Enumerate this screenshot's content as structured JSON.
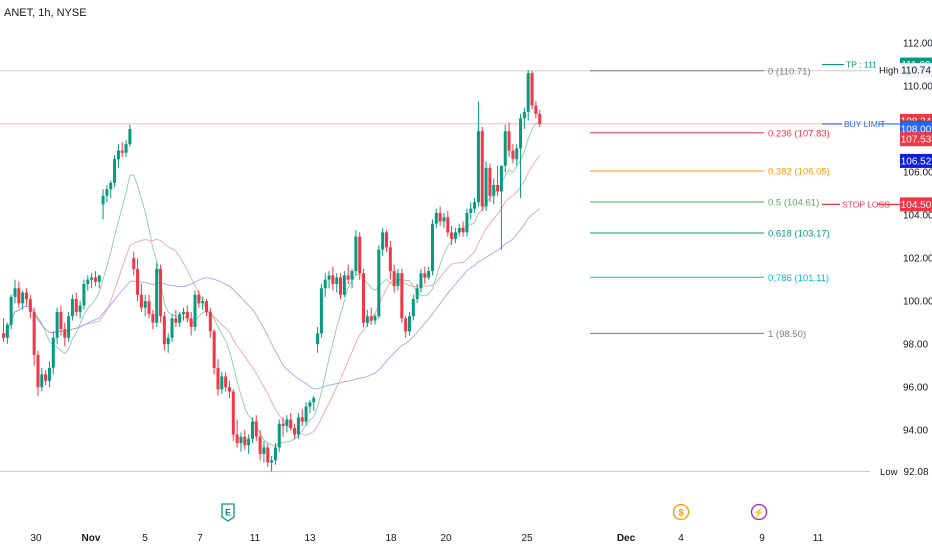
{
  "chart_data": {
    "type": "candlestick",
    "title": "ANET, 1h, NYSE",
    "y_axis": {
      "ticks": [
        "112.00",
        "110.00",
        "108.00",
        "106.00",
        "104.00",
        "102.00",
        "100.00",
        "98.00",
        "96.00",
        "94.00"
      ],
      "range": [
        91.5,
        112.7
      ]
    },
    "x_axis": {
      "ticks": [
        "30",
        "Nov",
        "5",
        "7",
        "11",
        "13",
        "18",
        "20",
        "25",
        "Dec",
        "4",
        "9",
        "11"
      ]
    },
    "fibonacci": [
      {
        "label": "0 (110.71)",
        "value": 110.71
      },
      {
        "label": "0.236 (107.83)",
        "value": 107.83
      },
      {
        "label": "0.382 (106.05)",
        "value": 106.05
      },
      {
        "label": "0.5 (104.61)",
        "value": 104.61
      },
      {
        "label": "0.618 (103.17)",
        "value": 103.17
      },
      {
        "label": "0.786 (101.11)",
        "value": 101.11
      },
      {
        "label": "1 (98.50)",
        "value": 98.5
      }
    ],
    "annotations": [
      {
        "label": "TP : 111 -",
        "value": 111.0
      },
      {
        "label": "BUY LIMIT",
        "value": 108.24
      },
      {
        "label": "STOP LOSS",
        "value": 104.5
      }
    ],
    "price_labels": [
      {
        "text": "111.00",
        "value": 111.0
      },
      {
        "text": "108.24",
        "value": 108.24
      },
      {
        "text": "108.21",
        "value": 108.21
      },
      {
        "text": "108.00",
        "value": 108.0
      },
      {
        "text": "107.53",
        "value": 107.53
      },
      {
        "text": "106.52",
        "value": 106.52
      },
      {
        "text": "104.50",
        "value": 104.5
      }
    ],
    "high_label": {
      "tag": "High",
      "value_text": "110.74",
      "value": 110.74
    },
    "low_label": {
      "tag": "Low",
      "value_text": "92.08",
      "value": 92.08
    },
    "event_markers": [
      {
        "glyph": "E",
        "position": "8 Nov"
      },
      {
        "glyph": "$",
        "position": "4 Dec"
      },
      {
        "glyph": "⚡",
        "position": "8 Dec"
      }
    ],
    "ohlc_approx": [
      [
        98.5,
        99.2,
        98.1,
        98.3
      ],
      [
        98.3,
        99.0,
        98.0,
        98.9
      ],
      [
        98.9,
        100.3,
        98.7,
        100.2
      ],
      [
        100.2,
        101.0,
        99.9,
        100.6
      ],
      [
        100.6,
        100.9,
        99.7,
        99.9
      ],
      [
        99.9,
        100.5,
        99.6,
        100.4
      ],
      [
        100.4,
        100.6,
        99.8,
        100.1
      ],
      [
        100.1,
        100.3,
        99.2,
        99.5
      ],
      [
        99.5,
        99.7,
        97.0,
        97.5
      ],
      [
        97.5,
        97.7,
        95.6,
        96.0
      ],
      [
        96.0,
        96.9,
        95.8,
        96.6
      ],
      [
        96.6,
        96.8,
        96.1,
        96.3
      ],
      [
        96.3,
        97.2,
        96.0,
        96.9
      ],
      [
        96.9,
        98.6,
        96.6,
        98.3
      ],
      [
        98.3,
        99.7,
        98.0,
        99.5
      ],
      [
        99.5,
        99.8,
        98.4,
        98.7
      ],
      [
        98.7,
        99.0,
        97.9,
        98.3
      ],
      [
        98.3,
        99.5,
        98.1,
        99.3
      ],
      [
        99.3,
        100.3,
        99.1,
        100.1
      ],
      [
        100.1,
        100.4,
        99.3,
        99.5
      ],
      [
        99.5,
        100.0,
        99.2,
        99.8
      ],
      [
        99.8,
        101.0,
        99.6,
        100.8
      ],
      [
        100.8,
        101.2,
        100.5,
        101.0
      ],
      [
        101.0,
        101.3,
        100.6,
        101.1
      ],
      [
        101.1,
        101.4,
        100.7,
        100.9
      ],
      [
        100.9,
        101.2,
        100.6,
        101.2
      ],
      [
        104.5,
        105.2,
        103.8,
        104.9
      ],
      [
        104.9,
        105.4,
        104.6,
        105.2
      ],
      [
        105.2,
        105.6,
        104.8,
        105.5
      ],
      [
        105.5,
        106.8,
        105.3,
        106.6
      ],
      [
        106.6,
        107.3,
        106.2,
        107.0
      ],
      [
        107.0,
        107.4,
        106.7,
        106.9
      ],
      [
        106.9,
        107.5,
        106.7,
        107.3
      ],
      [
        107.3,
        108.2,
        107.2,
        108.0
      ],
      [
        102.0,
        102.3,
        101.2,
        101.5
      ],
      [
        101.5,
        102.0,
        100.0,
        100.3
      ],
      [
        100.3,
        100.8,
        99.5,
        99.7
      ],
      [
        99.7,
        100.3,
        99.3,
        100.0
      ],
      [
        100.0,
        100.3,
        99.2,
        99.4
      ],
      [
        99.4,
        99.6,
        98.7,
        99.0
      ],
      [
        99.0,
        101.8,
        98.8,
        101.5
      ],
      [
        101.5,
        101.7,
        99.0,
        99.3
      ],
      [
        99.3,
        99.5,
        97.7,
        98.0
      ],
      [
        98.0,
        98.5,
        97.6,
        98.3
      ],
      [
        98.3,
        99.4,
        98.1,
        99.2
      ],
      [
        99.2,
        99.6,
        98.8,
        99.0
      ],
      [
        99.0,
        99.5,
        98.8,
        99.4
      ],
      [
        99.4,
        99.7,
        99.1,
        99.5
      ],
      [
        99.5,
        99.8,
        99.0,
        99.2
      ],
      [
        99.2,
        99.5,
        98.4,
        98.8
      ],
      [
        98.8,
        100.5,
        98.6,
        100.3
      ],
      [
        100.3,
        100.5,
        99.7,
        99.9
      ],
      [
        99.9,
        100.2,
        99.6,
        100.0
      ],
      [
        100.0,
        100.1,
        99.3,
        99.5
      ],
      [
        99.5,
        99.7,
        98.3,
        98.6
      ],
      [
        98.6,
        98.7,
        96.6,
        96.9
      ],
      [
        96.9,
        97.3,
        95.6,
        95.9
      ],
      [
        95.9,
        96.7,
        95.7,
        96.5
      ],
      [
        96.5,
        96.7,
        95.8,
        96.0
      ],
      [
        96.0,
        96.3,
        95.5,
        95.8
      ],
      [
        95.8,
        95.9,
        93.5,
        93.8
      ],
      [
        93.8,
        94.5,
        93.2,
        93.4
      ],
      [
        93.4,
        93.9,
        93.0,
        93.7
      ],
      [
        93.7,
        94.0,
        93.1,
        93.3
      ],
      [
        93.3,
        93.8,
        92.9,
        93.6
      ],
      [
        93.6,
        94.6,
        93.4,
        94.4
      ],
      [
        94.4,
        94.7,
        93.5,
        93.7
      ],
      [
        93.7,
        94.0,
        92.6,
        92.9
      ],
      [
        92.9,
        93.5,
        92.5,
        93.2
      ],
      [
        93.2,
        93.4,
        92.3,
        92.5
      ],
      [
        92.5,
        92.8,
        92.08,
        92.6
      ],
      [
        92.6,
        93.4,
        92.4,
        93.2
      ],
      [
        93.2,
        94.5,
        93.0,
        94.3
      ],
      [
        94.3,
        94.6,
        93.7,
        94.2
      ],
      [
        94.2,
        94.7,
        93.9,
        94.5
      ],
      [
        94.5,
        94.8,
        94.0,
        94.1
      ],
      [
        94.1,
        94.3,
        93.6,
        93.8
      ],
      [
        93.8,
        94.8,
        93.6,
        94.6
      ],
      [
        94.6,
        95.0,
        94.2,
        94.4
      ],
      [
        94.4,
        95.3,
        94.2,
        95.1
      ],
      [
        95.1,
        95.4,
        94.8,
        95.3
      ],
      [
        95.3,
        95.6,
        94.9,
        95.5
      ],
      [
        98.0,
        98.8,
        97.6,
        98.5
      ],
      [
        98.5,
        100.8,
        98.3,
        100.6
      ],
      [
        100.6,
        101.3,
        100.2,
        101.0
      ],
      [
        101.0,
        101.4,
        100.6,
        101.2
      ],
      [
        101.2,
        101.6,
        100.5,
        100.8
      ],
      [
        100.8,
        101.3,
        100.4,
        101.1
      ],
      [
        101.1,
        101.3,
        100.1,
        100.3
      ],
      [
        100.3,
        101.4,
        100.2,
        101.2
      ],
      [
        101.2,
        101.7,
        100.8,
        101.0
      ],
      [
        101.0,
        101.5,
        100.6,
        101.4
      ],
      [
        101.4,
        103.3,
        101.2,
        103.0
      ],
      [
        103.0,
        103.2,
        101.0,
        101.3
      ],
      [
        101.3,
        101.5,
        98.8,
        99.0
      ],
      [
        99.0,
        99.6,
        98.8,
        99.3
      ],
      [
        99.3,
        99.7,
        98.9,
        99.1
      ],
      [
        99.1,
        99.4,
        98.9,
        99.3
      ],
      [
        99.3,
        102.6,
        99.2,
        102.4
      ],
      [
        102.4,
        103.4,
        102.1,
        103.2
      ],
      [
        103.2,
        103.3,
        102.3,
        102.5
      ],
      [
        102.5,
        102.8,
        101.0,
        101.4
      ],
      [
        101.4,
        101.7,
        100.4,
        100.7
      ],
      [
        100.7,
        101.5,
        100.5,
        101.3
      ],
      [
        101.3,
        101.5,
        99.0,
        99.2
      ],
      [
        99.2,
        99.3,
        98.3,
        98.6
      ],
      [
        98.6,
        99.5,
        98.4,
        99.3
      ],
      [
        99.3,
        100.3,
        99.1,
        100.1
      ],
      [
        100.1,
        100.8,
        99.9,
        100.6
      ],
      [
        100.6,
        101.5,
        100.4,
        101.3
      ],
      [
        101.3,
        101.6,
        100.8,
        101.1
      ],
      [
        101.1,
        101.6,
        101.0,
        101.4
      ],
      [
        101.4,
        103.8,
        101.2,
        103.6
      ],
      [
        103.6,
        104.3,
        103.4,
        104.1
      ],
      [
        104.1,
        104.4,
        103.5,
        103.7
      ],
      [
        103.7,
        104.1,
        103.4,
        103.9
      ],
      [
        103.9,
        104.2,
        103.0,
        103.2
      ],
      [
        103.2,
        103.5,
        102.6,
        102.9
      ],
      [
        102.9,
        103.4,
        102.7,
        103.2
      ],
      [
        103.2,
        103.6,
        103.0,
        103.4
      ],
      [
        103.4,
        103.7,
        103.0,
        103.2
      ],
      [
        103.2,
        104.3,
        103.0,
        104.1
      ],
      [
        104.1,
        104.6,
        103.8,
        104.3
      ],
      [
        104.3,
        104.8,
        104.1,
        104.6
      ],
      [
        104.6,
        109.3,
        104.4,
        107.9
      ],
      [
        107.9,
        108.1,
        104.2,
        104.4
      ],
      [
        104.4,
        106.5,
        104.2,
        106.2
      ],
      [
        106.2,
        106.4,
        104.6,
        104.9
      ],
      [
        104.9,
        105.7,
        104.5,
        105.4
      ],
      [
        105.4,
        106.3,
        104.9,
        105.1
      ],
      [
        105.1,
        105.3,
        102.4,
        106.3
      ],
      [
        106.3,
        108.2,
        106.0,
        107.9
      ],
      [
        107.9,
        108.3,
        106.7,
        107.0
      ],
      [
        107.0,
        107.3,
        106.4,
        106.6
      ],
      [
        106.6,
        107.3,
        106.3,
        107.1
      ],
      [
        107.1,
        108.7,
        104.8,
        108.5
      ],
      [
        108.5,
        109.0,
        108.0,
        108.8
      ],
      [
        108.8,
        110.74,
        108.4,
        110.6
      ],
      [
        110.6,
        110.7,
        108.9,
        109.1
      ],
      [
        109.1,
        109.3,
        108.5,
        108.7
      ],
      [
        108.7,
        108.9,
        108.1,
        108.24
      ]
    ]
  }
}
